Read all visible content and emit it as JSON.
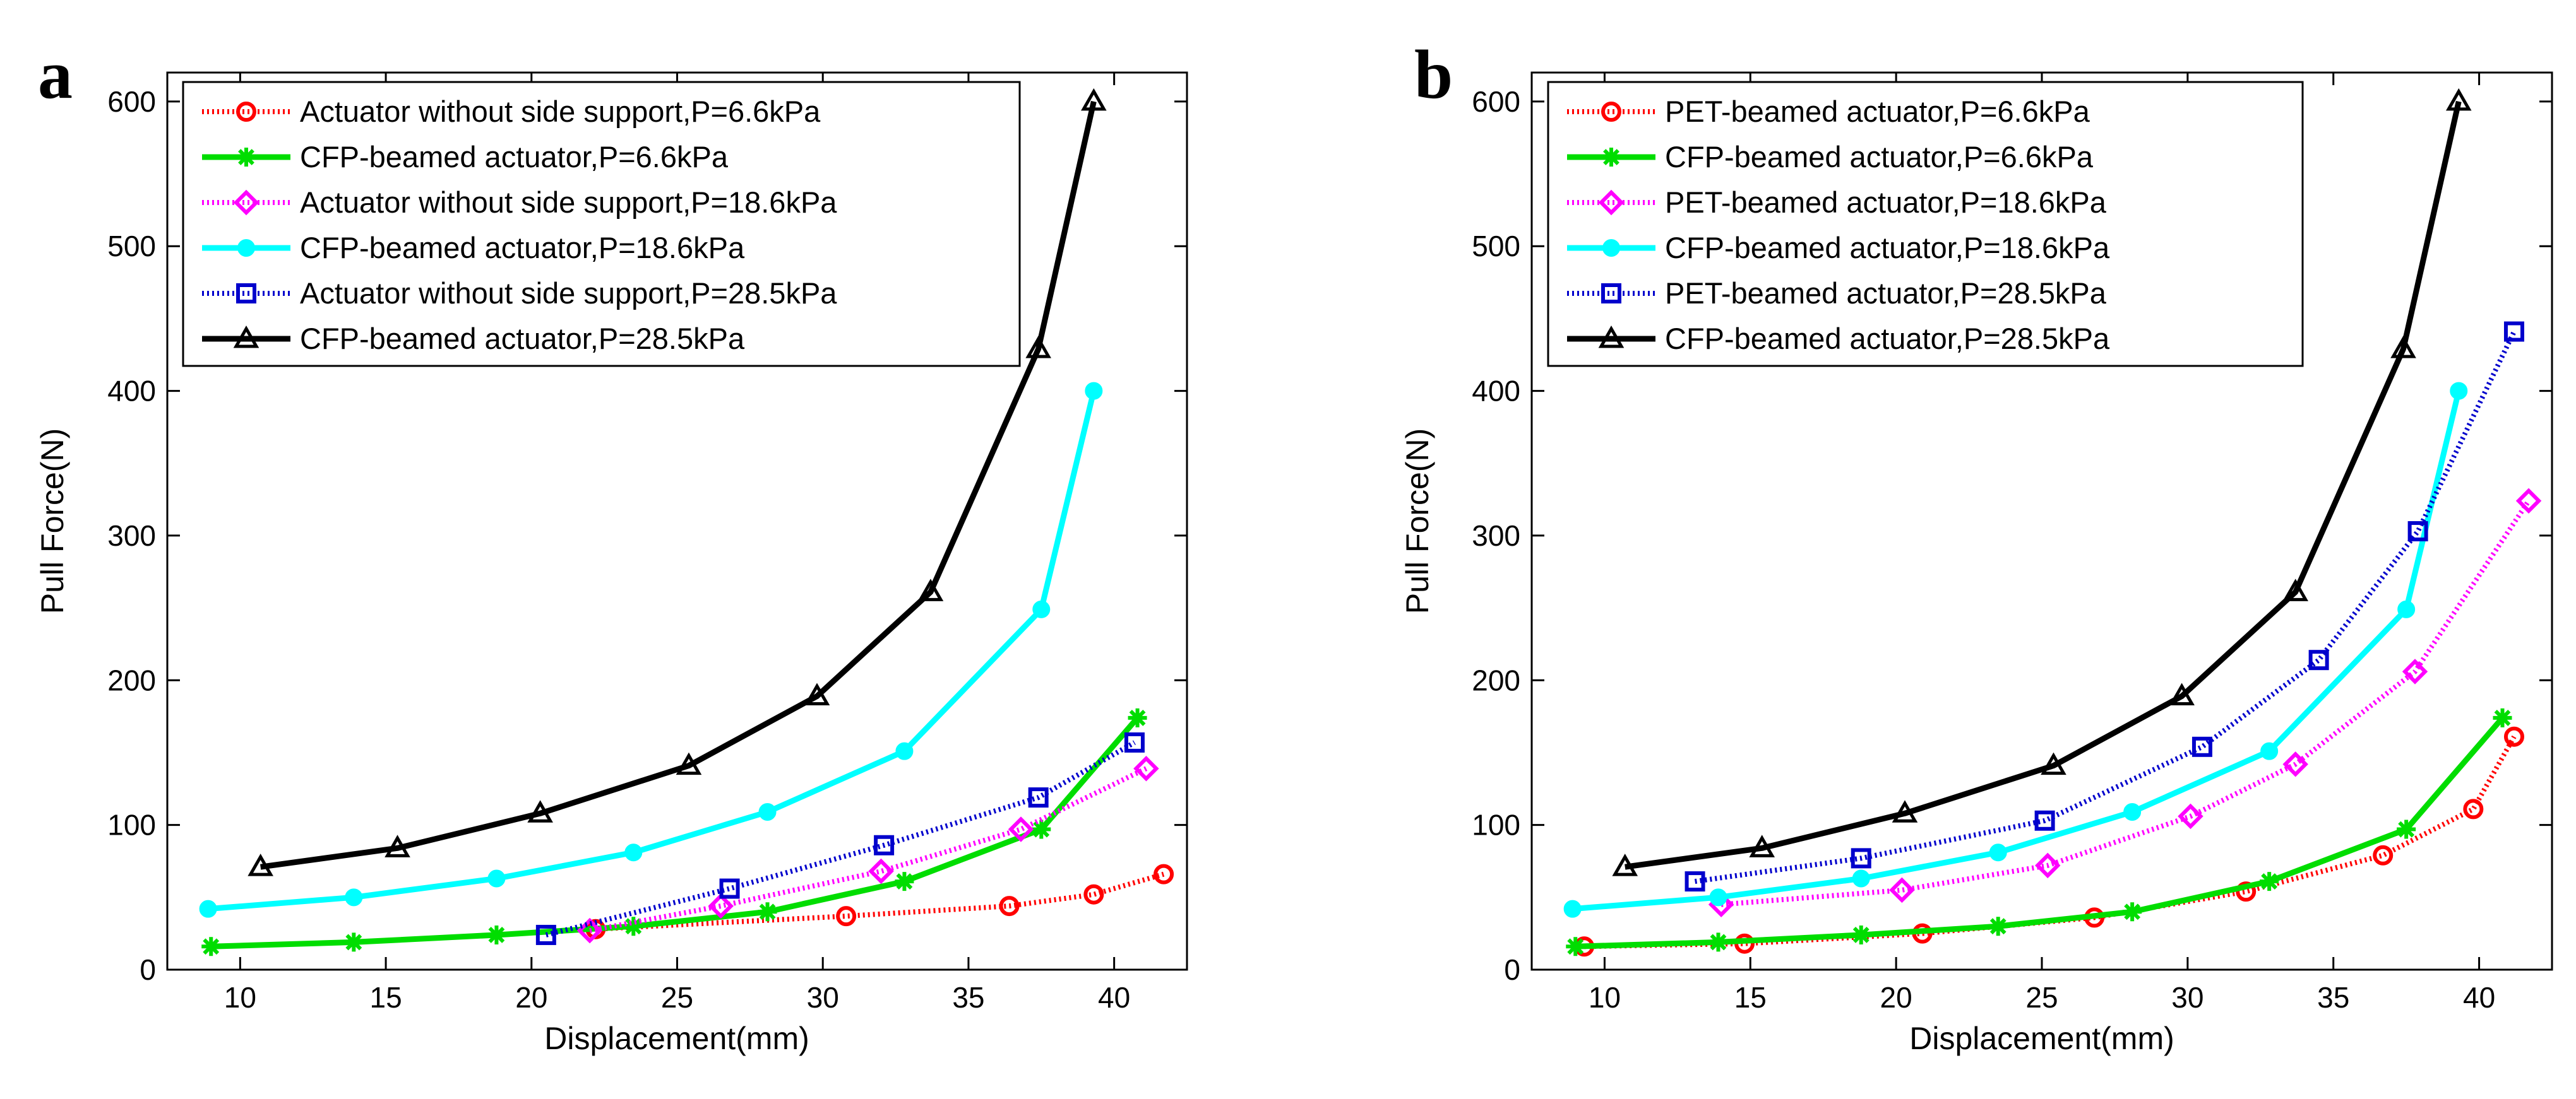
{
  "chart_data": [
    {
      "type": "line",
      "panel_label": "a",
      "xlabel": "Displacement(mm)",
      "ylabel": "Pull Force(N)",
      "xlim": [
        7.5,
        42.5
      ],
      "ylim": [
        0,
        620
      ],
      "xticks": [
        10,
        15,
        20,
        25,
        30,
        35,
        40
      ],
      "yticks": [
        0,
        100,
        200,
        300,
        400,
        500,
        600
      ],
      "grid": false,
      "legend_position": "top-left",
      "series": [
        {
          "name": "Actuator without side support,P=6.6kPa",
          "color": "#ff0000",
          "dash": "dotted",
          "marker": "circle",
          "x": [
            22.2,
            30.8,
            36.4,
            39.3,
            41.7
          ],
          "y": [
            28,
            37,
            44,
            52,
            66
          ]
        },
        {
          "name": "CFP-beamed actuator,P=6.6kPa",
          "color": "#00dd00",
          "dash": "solid",
          "marker": "asterisk",
          "x": [
            9,
            13.9,
            18.8,
            23.5,
            28.1,
            32.8,
            37.5,
            40.8
          ],
          "y": [
            16,
            19,
            24,
            30,
            40,
            61,
            97,
            174
          ]
        },
        {
          "name": "Actuator without side support,P=18.6kPa",
          "color": "#ff00ff",
          "dash": "dotted",
          "marker": "diamond",
          "x": [
            22,
            26.5,
            32,
            36.8,
            41.1
          ],
          "y": [
            27,
            44,
            68,
            97,
            139
          ]
        },
        {
          "name": "CFP-beamed actuator,P=18.6kPa",
          "color": "#00ffff",
          "dash": "solid",
          "marker": "dot",
          "x": [
            8.9,
            13.9,
            18.8,
            23.5,
            28.1,
            32.8,
            37.5,
            39.3
          ],
          "y": [
            42,
            50,
            63,
            81,
            109,
            151,
            249,
            400
          ]
        },
        {
          "name": "Actuator without side support,P=28.5kPa",
          "color": "#0000cc",
          "dash": "dotted",
          "marker": "square",
          "x": [
            20.5,
            26.8,
            32.1,
            37.4,
            40.7
          ],
          "y": [
            24,
            56,
            86,
            119,
            157
          ]
        },
        {
          "name": "CFP-beamed actuator,P=28.5kPa",
          "color": "#000000",
          "dash": "solid",
          "marker": "triangle",
          "x": [
            10.7,
            15.4,
            20.3,
            25.4,
            29.8,
            33.7,
            37.4,
            39.3
          ],
          "y": [
            71,
            84,
            108,
            141,
            189,
            261,
            429,
            600
          ]
        }
      ]
    },
    {
      "type": "line",
      "panel_label": "b",
      "xlabel": "Displacement(mm)",
      "ylabel": "Pull Force(N)",
      "xlim": [
        7.5,
        42.5
      ],
      "ylim": [
        0,
        620
      ],
      "xticks": [
        10,
        15,
        20,
        25,
        30,
        35,
        40
      ],
      "yticks": [
        0,
        100,
        200,
        300,
        400,
        500,
        600
      ],
      "grid": false,
      "legend_position": "top-left",
      "series": [
        {
          "name": "PET-beamed actuator,P=6.6kPa",
          "color": "#ff0000",
          "dash": "dotted",
          "marker": "circle",
          "x": [
            9.3,
            14.8,
            20.9,
            26.8,
            32,
            36.7,
            39.8,
            41.2
          ],
          "y": [
            16,
            18,
            25,
            36,
            54,
            79,
            111,
            161
          ]
        },
        {
          "name": "CFP-beamed actuator,P=6.6kPa",
          "color": "#00dd00",
          "dash": "solid",
          "marker": "asterisk",
          "x": [
            9,
            13.9,
            18.8,
            23.5,
            28.1,
            32.8,
            37.5,
            40.8
          ],
          "y": [
            16,
            19,
            24,
            30,
            40,
            61,
            97,
            174
          ]
        },
        {
          "name": "PET-beamed actuator,P=18.6kPa",
          "color": "#ff00ff",
          "dash": "dotted",
          "marker": "diamond",
          "x": [
            14,
            20.2,
            25.2,
            30.1,
            33.7,
            37.8,
            41.7
          ],
          "y": [
            45,
            55,
            72,
            106,
            142,
            206,
            324
          ]
        },
        {
          "name": "CFP-beamed actuator,P=18.6kPa",
          "color": "#00ffff",
          "dash": "solid",
          "marker": "dot",
          "x": [
            8.9,
            13.9,
            18.8,
            23.5,
            28.1,
            32.8,
            37.5,
            39.3
          ],
          "y": [
            42,
            50,
            63,
            81,
            109,
            151,
            249,
            400
          ]
        },
        {
          "name": "PET-beamed actuator,P=28.5kPa",
          "color": "#0000cc",
          "dash": "dotted",
          "marker": "square",
          "x": [
            13.1,
            18.8,
            25.1,
            30.5,
            34.5,
            37.9,
            41.2
          ],
          "y": [
            61,
            77,
            103,
            154,
            214,
            303,
            441
          ]
        },
        {
          "name": "CFP-beamed actuator,P=28.5kPa",
          "color": "#000000",
          "dash": "solid",
          "marker": "triangle",
          "x": [
            10.7,
            15.4,
            20.3,
            25.4,
            29.8,
            33.7,
            37.4,
            39.3
          ],
          "y": [
            71,
            84,
            108,
            141,
            189,
            261,
            429,
            600
          ]
        }
      ]
    }
  ]
}
